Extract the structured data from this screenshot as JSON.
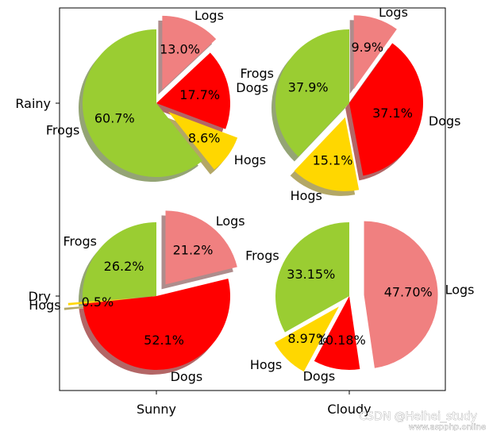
{
  "chart_data": {
    "type": "pie",
    "x_ticks": [
      "Sunny",
      "Cloudy"
    ],
    "y_ticks": [
      "Rainy",
      "Dry"
    ],
    "colors": {
      "Frogs": "#9acd32",
      "Hogs": "#ffd700",
      "Dogs": "#ff0000",
      "Logs": "#f08080"
    },
    "pies": [
      {
        "row": "Rainy",
        "col": "Sunny",
        "shadow": true,
        "pct_format": "%1.1f%%",
        "slices": [
          {
            "label": "Frogs",
            "pct": "60.7%",
            "value": 60.7,
            "explode": 0
          },
          {
            "label": "Hogs",
            "pct": "8.6%",
            "value": 8.6,
            "explode": 0.2
          },
          {
            "label": "Dogs",
            "pct": "17.7%",
            "value": 17.7,
            "explode": 0
          },
          {
            "label": "Logs",
            "pct": "13.0%",
            "value": 13.0,
            "explode": 0.2
          }
        ]
      },
      {
        "row": "Rainy",
        "col": "Cloudy",
        "shadow": true,
        "pct_format": "%1.1f%%",
        "slices": [
          {
            "label": "Frogs",
            "pct": "37.9%",
            "value": 37.9,
            "explode": 0
          },
          {
            "label": "Hogs",
            "pct": "15.1%",
            "value": 15.1,
            "explode": 0.2
          },
          {
            "label": "Dogs",
            "pct": "37.1%",
            "value": 37.1,
            "explode": 0
          },
          {
            "label": "Logs",
            "pct": "9.9%",
            "value": 9.9,
            "explode": 0.2
          }
        ]
      },
      {
        "row": "Dry",
        "col": "Sunny",
        "shadow": true,
        "pct_format": "%1.1f%%",
        "slices": [
          {
            "label": "Frogs",
            "pct": "26.2%",
            "value": 26.2,
            "explode": 0
          },
          {
            "label": "Hogs",
            "pct": "0.5%",
            "value": 0.5,
            "explode": 0.2
          },
          {
            "label": "Dogs",
            "pct": "52.1%",
            "value": 52.1,
            "explode": 0
          },
          {
            "label": "Logs",
            "pct": "21.2%",
            "value": 21.2,
            "explode": 0.2
          }
        ]
      },
      {
        "row": "Dry",
        "col": "Cloudy",
        "shadow": false,
        "pct_format": "%1.2f%%",
        "slices": [
          {
            "label": "Frogs",
            "pct": "33.15%",
            "value": 33.15,
            "explode": 0
          },
          {
            "label": "Hogs",
            "pct": "8.97%",
            "value": 8.97,
            "explode": 0.2
          },
          {
            "label": "Dogs",
            "pct": "10.18%",
            "value": 10.18,
            "explode": 0
          },
          {
            "label": "Logs",
            "pct": "47.70%",
            "value": 47.7,
            "explode": 0.2
          }
        ]
      }
    ]
  },
  "watermark": "CSDN @Heihei_study",
  "watermark2": "www.aspphp.online"
}
